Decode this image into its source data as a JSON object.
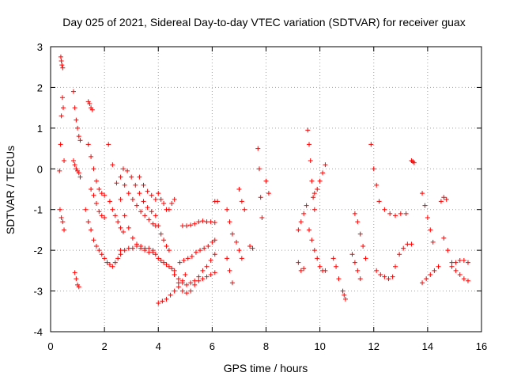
{
  "chart_data": {
    "type": "scatter",
    "title": "Day 025 of 2021, Sidereal Day-to-day VTEC variation (SDTVAR) for receiver guax",
    "xlabel": "GPS time / hours",
    "ylabel": "SDTVAR / TECUs",
    "xlim": [
      0,
      16
    ],
    "ylim": [
      -4,
      3
    ],
    "xticks": [
      "0",
      "2",
      "4",
      "6",
      "8",
      "10",
      "12",
      "14",
      "16"
    ],
    "yticks": [
      "-4",
      "-3",
      "-2",
      "-1",
      "0",
      "1",
      "2",
      "3"
    ],
    "grid": true,
    "marker": "+",
    "color": "#ff0000",
    "series_segments": [
      {
        "name": "pass-01",
        "x": [
          0.38,
          0.4,
          0.42,
          0.45
        ],
        "y": [
          2.75,
          2.65,
          2.55,
          2.48
        ]
      },
      {
        "name": "pass-02",
        "x": [
          0.33,
          0.37,
          0.4,
          0.44,
          0.47,
          0.5
        ],
        "y": [
          -0.05,
          0.6,
          1.3,
          1.75,
          1.5,
          0.2
        ]
      },
      {
        "name": "pass-03",
        "x": [
          0.35,
          0.4,
          0.45,
          0.5
        ],
        "y": [
          -1.0,
          -1.2,
          -1.3,
          -1.5
        ]
      },
      {
        "name": "pass-04",
        "x": [
          0.85,
          0.9,
          0.95,
          1.0,
          1.05,
          1.1
        ],
        "y": [
          1.9,
          1.5,
          1.2,
          1.0,
          0.8,
          0.7
        ]
      },
      {
        "name": "pass-05",
        "x": [
          0.85,
          0.9,
          0.95,
          1.0,
          1.05,
          1.1
        ],
        "y": [
          0.2,
          0.1,
          0.0,
          -0.05,
          -0.1,
          -0.2
        ]
      },
      {
        "name": "pass-06",
        "x": [
          0.9,
          0.95,
          1.0,
          1.05
        ],
        "y": [
          -2.55,
          -2.7,
          -2.85,
          -2.9
        ]
      },
      {
        "name": "pass-07",
        "x": [
          1.4,
          1.45,
          1.5,
          1.55
        ],
        "y": [
          1.65,
          1.6,
          1.5,
          1.45
        ]
      },
      {
        "name": "pass-08",
        "x": [
          1.4,
          1.5,
          1.6,
          1.7,
          1.8,
          1.9,
          2.0
        ],
        "y": [
          0.6,
          0.3,
          0.0,
          -0.3,
          -0.5,
          -0.6,
          -0.65
        ]
      },
      {
        "name": "pass-09",
        "x": [
          1.3,
          1.4,
          1.5,
          1.6,
          1.7,
          1.8,
          1.9,
          2.0
        ],
        "y": [
          -1.0,
          -1.3,
          -1.5,
          -1.75,
          -1.9,
          -2.0,
          -2.1,
          -2.2
        ]
      },
      {
        "name": "pass-10",
        "x": [
          1.5,
          1.6,
          1.7,
          1.8,
          1.9,
          2.0
        ],
        "y": [
          -0.5,
          -0.65,
          -0.85,
          -1.05,
          -1.15,
          -1.2
        ]
      },
      {
        "name": "pass-11",
        "x": [
          2.15,
          2.3,
          2.45,
          2.6,
          2.75,
          2.9,
          3.05,
          3.2,
          3.35,
          3.5,
          3.65,
          3.8,
          3.9
        ],
        "y": [
          0.6,
          0.1,
          -0.35,
          -0.75,
          -1.15,
          -1.45,
          -1.7,
          -1.85,
          -1.95,
          -2.0,
          -2.05,
          -2.05,
          -2.1
        ]
      },
      {
        "name": "pass-12",
        "x": [
          2.2,
          2.3,
          2.4,
          2.5,
          2.6,
          2.7
        ],
        "y": [
          -0.8,
          -1.0,
          -1.15,
          -1.3,
          -1.45,
          -1.55
        ]
      },
      {
        "name": "pass-13",
        "x": [
          2.1,
          2.2,
          2.3,
          2.4,
          2.5,
          2.6
        ],
        "y": [
          -2.3,
          -2.35,
          -2.4,
          -2.3,
          -2.2,
          -2.1
        ]
      },
      {
        "name": "pass-14",
        "x": [
          2.6,
          2.75,
          2.9,
          3.05,
          3.2,
          3.35,
          3.5,
          3.65,
          3.8
        ],
        "y": [
          -2.0,
          -2.0,
          -1.95,
          -1.95,
          -1.9,
          -1.9,
          -1.95,
          -1.95,
          -2.0
        ]
      },
      {
        "name": "pass-15",
        "x": [
          2.7,
          2.85,
          3.0,
          3.15,
          3.3,
          3.45,
          3.6,
          3.75,
          3.9
        ],
        "y": [
          0.0,
          -0.05,
          -0.2,
          -0.4,
          -0.6,
          -0.8,
          -0.95,
          -1.05,
          -1.15
        ]
      },
      {
        "name": "pass-16",
        "x": [
          2.6,
          2.75,
          2.9,
          3.05,
          3.2,
          3.35,
          3.5,
          3.65,
          3.8,
          3.9
        ],
        "y": [
          -0.2,
          -0.4,
          -0.6,
          -0.75,
          -0.9,
          -1.05,
          -1.15,
          -1.25,
          -1.35,
          -1.4
        ]
      },
      {
        "name": "pass-17",
        "x": [
          3.3,
          3.45,
          3.6,
          3.75,
          3.9
        ],
        "y": [
          -0.2,
          -0.4,
          -0.55,
          -0.65,
          -0.75
        ]
      },
      {
        "name": "pass-18",
        "x": [
          4.0,
          4.1,
          4.2,
          4.3,
          4.4,
          4.5,
          4.6
        ],
        "y": [
          -0.6,
          -0.75,
          -0.85,
          -1.0,
          -1.0,
          -0.85,
          -0.75
        ]
      },
      {
        "name": "pass-19",
        "x": [
          4.0,
          4.1,
          4.2,
          4.3,
          4.4
        ],
        "y": [
          -1.4,
          -1.6,
          -1.75,
          -1.9,
          -2.0
        ]
      },
      {
        "name": "pass-20",
        "x": [
          4.0,
          4.1,
          4.2,
          4.3,
          4.4,
          4.5,
          4.6
        ],
        "y": [
          -2.2,
          -2.25,
          -2.3,
          -2.35,
          -2.4,
          -2.45,
          -2.5
        ]
      },
      {
        "name": "pass-21",
        "x": [
          4.0,
          4.15,
          4.3,
          4.45,
          4.6,
          4.75,
          4.9,
          5.0
        ],
        "y": [
          -3.3,
          -3.25,
          -3.2,
          -3.1,
          -3.0,
          -2.9,
          -2.75,
          -2.6
        ]
      },
      {
        "name": "pass-22",
        "x": [
          4.6,
          4.75,
          4.9,
          5.05,
          5.2,
          5.35,
          5.5,
          5.65,
          5.8,
          5.95,
          6.1
        ],
        "y": [
          -2.6,
          -2.7,
          -2.8,
          -2.85,
          -2.8,
          -2.75,
          -2.65,
          -2.5,
          -2.4,
          -2.25,
          -2.1
        ]
      },
      {
        "name": "pass-23",
        "x": [
          4.8,
          4.95,
          5.1,
          5.25,
          5.4,
          5.55,
          5.7,
          5.85,
          6.0,
          6.1
        ],
        "y": [
          -2.3,
          -2.25,
          -2.2,
          -2.15,
          -2.05,
          -2.0,
          -1.95,
          -1.9,
          -1.8,
          -1.75
        ]
      },
      {
        "name": "pass-24",
        "x": [
          4.6,
          4.75,
          4.9,
          5.05,
          5.2,
          5.35,
          5.5,
          5.65,
          5.8,
          5.95,
          6.1
        ],
        "y": [
          -2.6,
          -2.8,
          -3.0,
          -3.05,
          -3.0,
          -2.85,
          -2.75,
          -2.7,
          -2.65,
          -2.6,
          -2.55
        ]
      },
      {
        "name": "pass-25",
        "x": [
          4.9,
          5.05,
          5.2,
          5.35,
          5.5,
          5.65,
          5.8,
          5.95,
          6.1
        ],
        "y": [
          -1.4,
          -1.4,
          -1.38,
          -1.35,
          -1.3,
          -1.28,
          -1.3,
          -1.3,
          -1.32
        ]
      },
      {
        "name": "pass-26",
        "x": [
          6.1,
          6.2
        ],
        "y": [
          -0.8,
          -0.8
        ]
      },
      {
        "name": "pass-27",
        "x": [
          6.55,
          6.65,
          6.75
        ],
        "y": [
          -1.0,
          -1.3,
          -1.6
        ]
      },
      {
        "name": "pass-28",
        "x": [
          6.55,
          6.65,
          6.75
        ],
        "y": [
          -2.2,
          -2.5,
          -2.8
        ]
      },
      {
        "name": "pass-29",
        "x": [
          6.9,
          7.0,
          7.1
        ],
        "y": [
          -1.8,
          -2.0,
          -2.2
        ]
      },
      {
        "name": "pass-30",
        "x": [
          7.0,
          7.1,
          7.2
        ],
        "y": [
          -0.5,
          -0.8,
          -1.0
        ]
      },
      {
        "name": "pass-31",
        "x": [
          7.4,
          7.5
        ],
        "y": [
          -1.9,
          -1.95
        ]
      },
      {
        "name": "pass-32",
        "x": [
          7.7,
          7.75,
          7.8,
          7.85
        ],
        "y": [
          0.5,
          0.0,
          -0.7,
          -1.2
        ]
      },
      {
        "name": "pass-33",
        "x": [
          8.0,
          8.1
        ],
        "y": [
          -0.3,
          -0.6
        ]
      },
      {
        "name": "pass-34",
        "x": [
          9.2,
          9.3,
          9.4,
          9.5
        ],
        "y": [
          -1.5,
          -1.3,
          -1.1,
          -0.9
        ]
      },
      {
        "name": "pass-35",
        "x": [
          9.2,
          9.3,
          9.4
        ],
        "y": [
          -2.3,
          -2.5,
          -2.45
        ]
      },
      {
        "name": "pass-36",
        "x": [
          9.55,
          9.6,
          9.65,
          9.7,
          9.75,
          9.8
        ],
        "y": [
          0.95,
          0.6,
          0.2,
          -0.3,
          -0.7,
          -1.0
        ]
      },
      {
        "name": "pass-37",
        "x": [
          9.6,
          9.7,
          9.8,
          9.9,
          10.0,
          10.1,
          10.2
        ],
        "y": [
          -1.5,
          -1.75,
          -2.0,
          -2.2,
          -2.4,
          -2.5,
          -2.5
        ]
      },
      {
        "name": "pass-38",
        "x": [
          9.8,
          9.9,
          10.0,
          10.1,
          10.2
        ],
        "y": [
          -0.6,
          -0.5,
          -0.3,
          -0.1,
          0.1
        ]
      },
      {
        "name": "pass-39",
        "x": [
          10.5,
          10.6,
          10.7
        ],
        "y": [
          -2.2,
          -2.4,
          -2.7
        ]
      },
      {
        "name": "pass-40",
        "x": [
          10.85,
          10.9,
          10.95
        ],
        "y": [
          -3.0,
          -3.1,
          -3.2
        ]
      },
      {
        "name": "pass-41",
        "x": [
          11.3,
          11.4,
          11.5,
          11.6,
          11.7
        ],
        "y": [
          -1.1,
          -1.3,
          -1.6,
          -1.9,
          -2.2
        ]
      },
      {
        "name": "pass-42",
        "x": [
          11.2,
          11.3,
          11.4,
          11.5
        ],
        "y": [
          -2.1,
          -2.3,
          -2.5,
          -2.7
        ]
      },
      {
        "name": "pass-43",
        "x": [
          11.9,
          12.0,
          12.1,
          12.2
        ],
        "y": [
          0.6,
          0.0,
          -0.4,
          -0.8
        ]
      },
      {
        "name": "pass-44",
        "x": [
          12.1,
          12.25,
          12.4,
          12.55,
          12.7
        ],
        "y": [
          -2.5,
          -2.6,
          -2.65,
          -2.7,
          -2.65
        ]
      },
      {
        "name": "pass-45",
        "x": [
          12.4,
          12.6,
          12.8,
          13.0,
          13.2
        ],
        "y": [
          -1.0,
          -1.1,
          -1.15,
          -1.1,
          -1.1
        ]
      },
      {
        "name": "pass-46",
        "x": [
          12.8,
          12.95,
          13.1,
          13.25,
          13.4
        ],
        "y": [
          -2.4,
          -2.1,
          -1.95,
          -1.85,
          -1.85
        ]
      },
      {
        "name": "pass-47",
        "x": [
          13.4,
          13.45,
          13.5
        ],
        "y": [
          0.2,
          0.18,
          0.15
        ]
      },
      {
        "name": "pass-48",
        "x": [
          13.8,
          13.9,
          14.0,
          14.1,
          14.2
        ],
        "y": [
          -0.6,
          -0.9,
          -1.2,
          -1.5,
          -1.8
        ]
      },
      {
        "name": "pass-49",
        "x": [
          13.8,
          13.95,
          14.1,
          14.25,
          14.4
        ],
        "y": [
          -2.8,
          -2.7,
          -2.6,
          -2.5,
          -2.4
        ]
      },
      {
        "name": "pass-50",
        "x": [
          14.5,
          14.6,
          14.7
        ],
        "y": [
          -0.8,
          -0.7,
          -0.75
        ]
      },
      {
        "name": "pass-51",
        "x": [
          14.6,
          14.75,
          14.9,
          15.05,
          15.2,
          15.35,
          15.5
        ],
        "y": [
          -1.7,
          -2.0,
          -2.3,
          -2.5,
          -2.6,
          -2.7,
          -2.75
        ]
      },
      {
        "name": "pass-52",
        "x": [
          14.9,
          15.05,
          15.2,
          15.35,
          15.5
        ],
        "y": [
          -2.4,
          -2.3,
          -2.25,
          -2.25,
          -2.3
        ]
      }
    ]
  }
}
